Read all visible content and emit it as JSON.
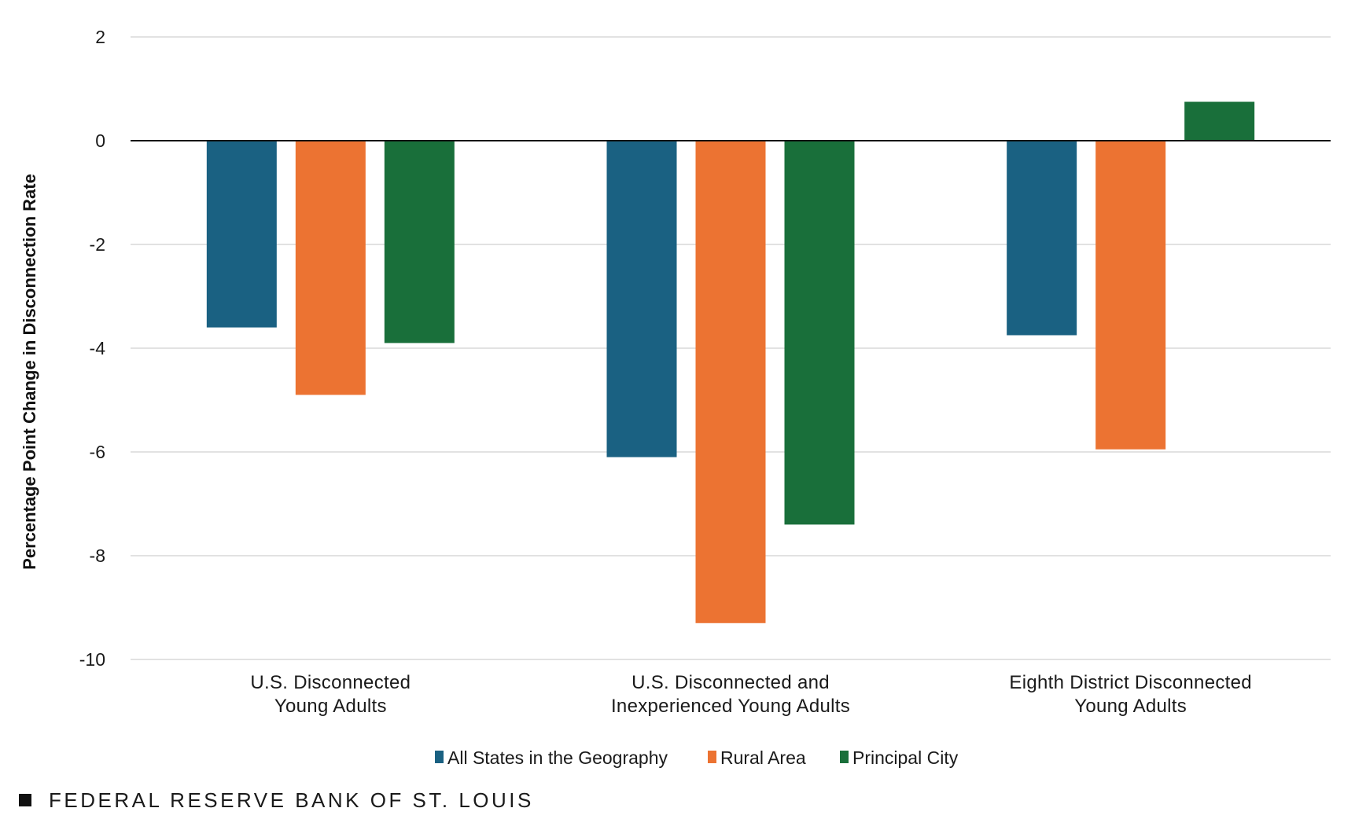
{
  "chart_data": {
    "type": "bar",
    "ylabel": "Percentage Point Change in Disconnection Rate",
    "xlabel": "",
    "ylim": [
      -10,
      2
    ],
    "yticks": [
      2,
      0,
      -2,
      -4,
      -6,
      -8,
      -10
    ],
    "grid": true,
    "legend_position": "bottom-center",
    "categories": [
      [
        "U.S. Disconnected",
        "Young Adults"
      ],
      [
        "U.S. Disconnected and",
        "Inexperienced Young Adults"
      ],
      [
        "Eighth District Disconnected",
        "Young Adults"
      ]
    ],
    "series": [
      {
        "name": "All States in the Geography",
        "color": "#1a6182",
        "values": [
          -3.6,
          -6.1,
          -3.75
        ]
      },
      {
        "name": "Rural Area",
        "color": "#ec7332",
        "values": [
          -4.9,
          -9.3,
          -5.95
        ]
      },
      {
        "name": "Principal City",
        "color": "#196f3a",
        "values": [
          -3.9,
          -7.4,
          0.75
        ]
      }
    ]
  },
  "footer": {
    "source": "FEDERAL RESERVE BANK OF ST. LOUIS"
  }
}
